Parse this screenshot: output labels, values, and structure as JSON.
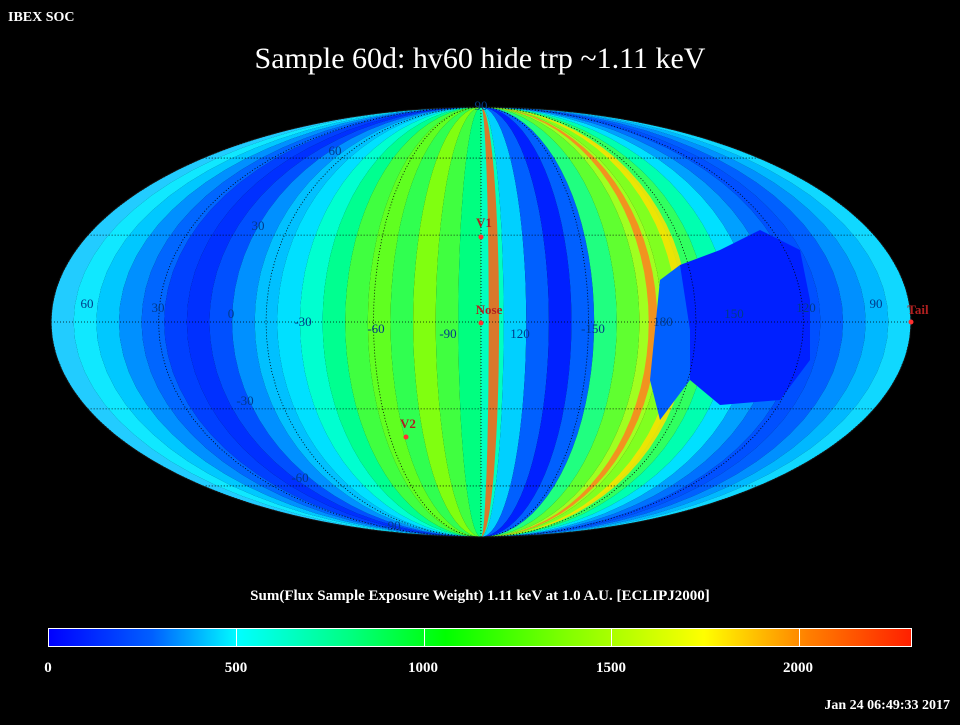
{
  "header": {
    "corner_label": "IBEX SOC"
  },
  "title": "Sample 60d: hv60 hide trp ~1.11 keV",
  "map": {
    "projection": "mollweide",
    "lat_labels_left": [
      "90",
      "60",
      "30",
      "-30",
      "-60",
      "-90"
    ],
    "lon_labels": [
      "60",
      "30",
      "0",
      "-30",
      "-60",
      "-90",
      "120",
      "-150",
      "180",
      "150",
      "120",
      "90"
    ],
    "markers": [
      {
        "label": "V1",
        "color": "#ff3030"
      },
      {
        "label": "Nose",
        "color": "#ff3030"
      },
      {
        "label": "V2",
        "color": "#ff3030"
      },
      {
        "label": "Tail",
        "color": "#ff3030"
      }
    ]
  },
  "colorbar": {
    "title": "Sum(Flux Sample Exposure Weight)  1.11 keV at 1.0 A.U. [ECLIPJ2000]",
    "ticks": [
      "0",
      "500",
      "1000",
      "1500",
      "2000"
    ],
    "min": 0,
    "max": 2300
  },
  "footer": {
    "timestamp": "Jan 24 06:49:33 2017"
  }
}
